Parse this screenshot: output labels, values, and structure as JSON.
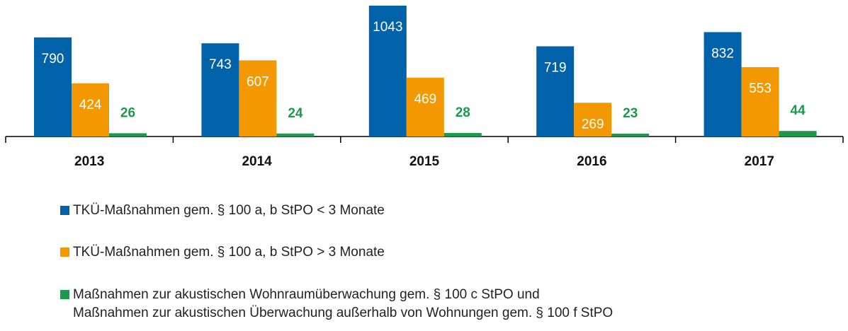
{
  "chart_data": {
    "type": "bar",
    "categories": [
      "2013",
      "2014",
      "2015",
      "2016",
      "2017"
    ],
    "series": [
      {
        "name": "TKÜ-Maßnahmen gem. § 100 a, b StPO < 3 Monate",
        "color": "#0062a8",
        "values": [
          790,
          743,
          1043,
          719,
          832
        ]
      },
      {
        "name": "TKÜ-Maßnahmen gem. § 100 a, b StPO > 3 Monate",
        "color": "#f39800",
        "values": [
          424,
          607,
          469,
          269,
          553
        ]
      },
      {
        "name": "Maßnahmen zur akustischen Wohnraumüberwachung gem. § 100 c StPO und\nMaßnahmen zur akustischen Überwachung außerhalb von Wohnungen gem. § 100 f StPO",
        "color": "#1a9a4a",
        "values": [
          26,
          24,
          28,
          23,
          44
        ]
      }
    ]
  }
}
